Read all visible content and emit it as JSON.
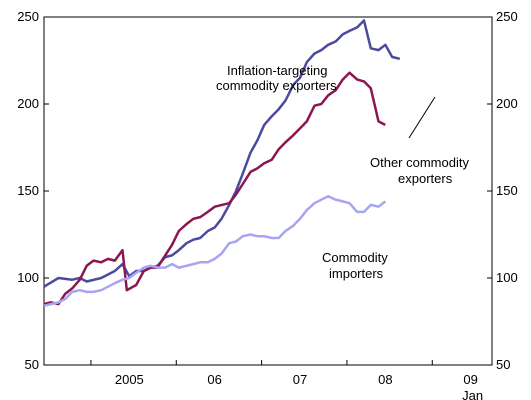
{
  "chart_data": {
    "type": "line",
    "title": "",
    "xlabel": "",
    "ylabel": "",
    "ylim": [
      50,
      250
    ],
    "xlim": [
      2004.0,
      2009.25
    ],
    "yticks": [
      50,
      100,
      150,
      200,
      250
    ],
    "x_tick_labels": [
      {
        "x": 2005.0,
        "label": "2005"
      },
      {
        "x": 2006.0,
        "label": "06"
      },
      {
        "x": 2007.0,
        "label": "07"
      },
      {
        "x": 2008.0,
        "label": "08"
      },
      {
        "x": 2009.0,
        "label": "09"
      }
    ],
    "x_sublabel": "Jan",
    "grid": false,
    "legend": "none",
    "annotations": {
      "inflation_targeting": [
        "Inflation-targeting",
        "commodity exporters"
      ],
      "other": [
        "Other commodity",
        "exporters"
      ],
      "importers": [
        "Commodity",
        "importers"
      ]
    },
    "series": [
      {
        "key": "inflation_targeting",
        "color": "#4b4a9e",
        "points": [
          [
            2004.0,
            95
          ],
          [
            2004.17,
            100
          ],
          [
            2004.33,
            99
          ],
          [
            2004.42,
            100
          ],
          [
            2004.5,
            98
          ],
          [
            2004.67,
            100
          ],
          [
            2004.83,
            104
          ],
          [
            2004.92,
            108
          ],
          [
            2005.0,
            101
          ],
          [
            2005.08,
            104
          ],
          [
            2005.17,
            104
          ],
          [
            2005.25,
            106
          ],
          [
            2005.33,
            107
          ],
          [
            2005.42,
            112
          ],
          [
            2005.5,
            113
          ],
          [
            2005.58,
            116
          ],
          [
            2005.67,
            120
          ],
          [
            2005.75,
            122
          ],
          [
            2005.83,
            123
          ],
          [
            2005.92,
            127
          ],
          [
            2006.0,
            129
          ],
          [
            2006.08,
            134
          ],
          [
            2006.17,
            142
          ],
          [
            2006.25,
            150
          ],
          [
            2006.33,
            160
          ],
          [
            2006.42,
            172
          ],
          [
            2006.5,
            179
          ],
          [
            2006.58,
            188
          ],
          [
            2006.67,
            193
          ],
          [
            2006.75,
            197
          ],
          [
            2006.83,
            202
          ],
          [
            2006.92,
            211
          ],
          [
            2007.0,
            215
          ],
          [
            2007.08,
            224
          ],
          [
            2007.17,
            229
          ],
          [
            2007.25,
            231
          ],
          [
            2007.33,
            234
          ],
          [
            2007.42,
            236
          ],
          [
            2007.5,
            240
          ],
          [
            2007.58,
            242
          ],
          [
            2007.67,
            244
          ],
          [
            2007.75,
            248
          ],
          [
            2007.83,
            232
          ],
          [
            2007.92,
            231
          ],
          [
            2008.0,
            234
          ],
          [
            2008.08,
            227
          ],
          [
            2008.17,
            226
          ]
        ]
      },
      {
        "key": "other",
        "color": "#8b1651",
        "points": [
          [
            2004.0,
            85
          ],
          [
            2004.08,
            86
          ],
          [
            2004.17,
            85
          ],
          [
            2004.25,
            91
          ],
          [
            2004.33,
            94
          ],
          [
            2004.42,
            99
          ],
          [
            2004.5,
            107
          ],
          [
            2004.58,
            110
          ],
          [
            2004.67,
            109
          ],
          [
            2004.75,
            111
          ],
          [
            2004.83,
            110
          ],
          [
            2004.92,
            116
          ],
          [
            2004.97,
            93
          ],
          [
            2005.08,
            96
          ],
          [
            2005.17,
            104
          ],
          [
            2005.25,
            106
          ],
          [
            2005.33,
            106
          ],
          [
            2005.42,
            113
          ],
          [
            2005.5,
            119
          ],
          [
            2005.58,
            127
          ],
          [
            2005.67,
            131
          ],
          [
            2005.75,
            134
          ],
          [
            2005.83,
            135
          ],
          [
            2005.92,
            138
          ],
          [
            2006.0,
            141
          ],
          [
            2006.17,
            143
          ],
          [
            2006.25,
            148
          ],
          [
            2006.33,
            154
          ],
          [
            2006.42,
            161
          ],
          [
            2006.5,
            163
          ],
          [
            2006.58,
            166
          ],
          [
            2006.67,
            168
          ],
          [
            2006.75,
            174
          ],
          [
            2006.83,
            178
          ],
          [
            2006.92,
            182
          ],
          [
            2007.0,
            186
          ],
          [
            2007.08,
            190
          ],
          [
            2007.17,
            199
          ],
          [
            2007.25,
            200
          ],
          [
            2007.33,
            205
          ],
          [
            2007.42,
            208
          ],
          [
            2007.5,
            214
          ],
          [
            2007.58,
            218
          ],
          [
            2007.67,
            214
          ],
          [
            2007.75,
            213
          ],
          [
            2007.83,
            209
          ],
          [
            2007.92,
            190
          ],
          [
            2008.0,
            188
          ]
        ]
      },
      {
        "key": "importers",
        "color": "#a7a4f2",
        "points": [
          [
            2004.0,
            84
          ],
          [
            2004.08,
            85
          ],
          [
            2004.17,
            86
          ],
          [
            2004.25,
            88
          ],
          [
            2004.33,
            92
          ],
          [
            2004.42,
            93
          ],
          [
            2004.5,
            92
          ],
          [
            2004.58,
            92
          ],
          [
            2004.67,
            93
          ],
          [
            2004.75,
            95
          ],
          [
            2004.83,
            97
          ],
          [
            2004.92,
            99
          ],
          [
            2005.0,
            100
          ],
          [
            2005.08,
            103
          ],
          [
            2005.17,
            106
          ],
          [
            2005.25,
            107
          ],
          [
            2005.33,
            106
          ],
          [
            2005.42,
            106
          ],
          [
            2005.5,
            108
          ],
          [
            2005.58,
            106
          ],
          [
            2005.67,
            107
          ],
          [
            2005.75,
            108
          ],
          [
            2005.83,
            109
          ],
          [
            2005.92,
            109
          ],
          [
            2006.0,
            111
          ],
          [
            2006.08,
            114
          ],
          [
            2006.17,
            120
          ],
          [
            2006.25,
            121
          ],
          [
            2006.33,
            124
          ],
          [
            2006.42,
            125
          ],
          [
            2006.5,
            124
          ],
          [
            2006.58,
            124
          ],
          [
            2006.67,
            123
          ],
          [
            2006.75,
            123
          ],
          [
            2006.83,
            127
          ],
          [
            2006.92,
            130
          ],
          [
            2007.0,
            134
          ],
          [
            2007.08,
            139
          ],
          [
            2007.17,
            143
          ],
          [
            2007.25,
            145
          ],
          [
            2007.33,
            147
          ],
          [
            2007.42,
            145
          ],
          [
            2007.5,
            144
          ],
          [
            2007.58,
            143
          ],
          [
            2007.67,
            138
          ],
          [
            2007.75,
            138
          ],
          [
            2007.83,
            142
          ],
          [
            2007.92,
            141
          ],
          [
            2008.0,
            144
          ]
        ]
      }
    ]
  }
}
